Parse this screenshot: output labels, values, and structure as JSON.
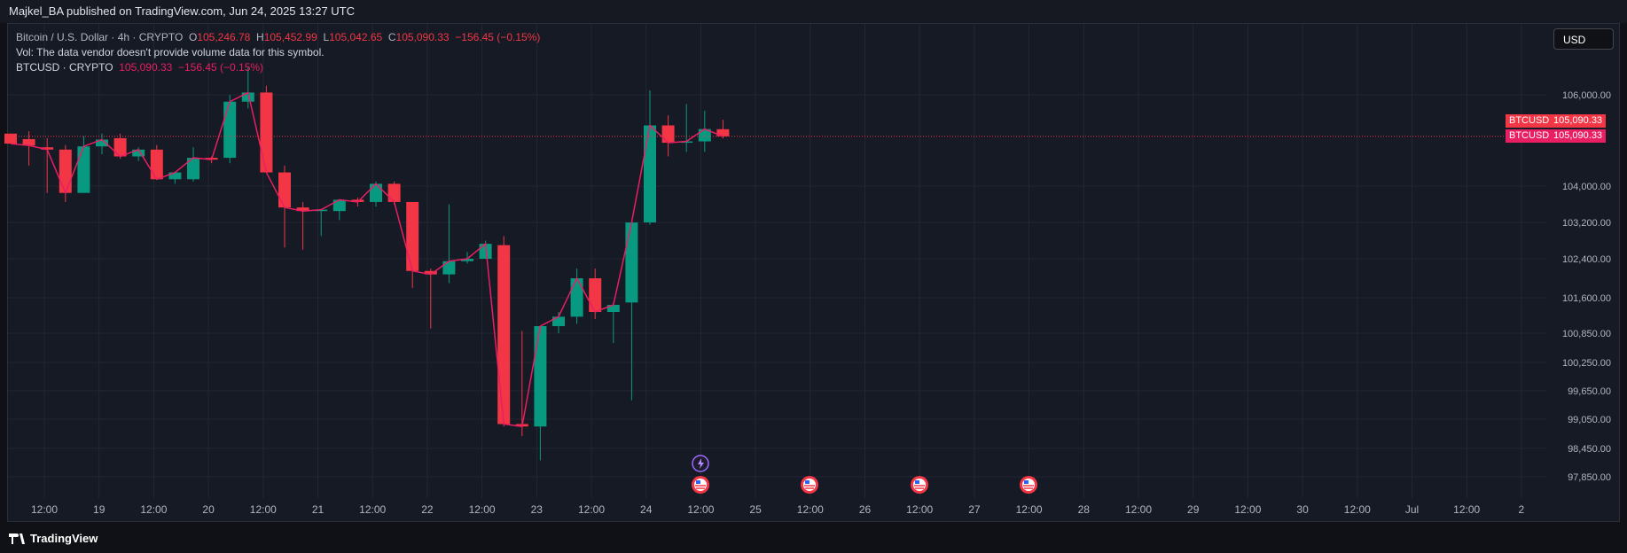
{
  "header": {
    "publisher_text": "Majkel_BA published on TradingView.com, Jun 24, 2025 13:27 UTC"
  },
  "legend": {
    "title": "Bitcoin / U.S. Dollar · 4h · CRYPTO",
    "o_label": "O",
    "o_value": "105,246.78",
    "h_label": "H",
    "h_value": "105,452.99",
    "l_label": "L",
    "l_value": "105,042.65",
    "c_label": "C",
    "c_value": "105,090.33",
    "change": "−156.45 (−0.15%)",
    "vol_text": "Vol: The data vendor doesn't provide volume data for this symbol.",
    "series_label": "BTCUSD · CRYPTO",
    "series_value": "105,090.33",
    "series_change": "−156.45 (−0.15%)"
  },
  "currency_button": {
    "label": "USD"
  },
  "price_tags": [
    {
      "symbol": "BTCUSD",
      "value": "105,090.33",
      "color": "#f23645"
    },
    {
      "symbol": "BTCUSD",
      "value": "105,090.33",
      "color": "#e91e63"
    }
  ],
  "footer": {
    "brand": "TradingView"
  },
  "colors": {
    "up": "#089981",
    "down": "#f23645",
    "line": "#e91e63",
    "grid": "#242733",
    "text": "#b2b5be"
  },
  "chart_data": {
    "type": "candlestick",
    "title": "Bitcoin / U.S. Dollar · 4h · CRYPTO",
    "ylim": [
      97600,
      107000
    ],
    "y_ticks": [
      {
        "value": 106000,
        "label": "106,000.00"
      },
      {
        "value": 104000,
        "label": "104,000.00"
      },
      {
        "value": 103200,
        "label": "103,200.00"
      },
      {
        "value": 102400,
        "label": "102,400.00"
      },
      {
        "value": 101600,
        "label": "101,600.00"
      },
      {
        "value": 100850,
        "label": "100,850.00"
      },
      {
        "value": 100250,
        "label": "100,250.00"
      },
      {
        "value": 99650,
        "label": "99,650.00"
      },
      {
        "value": 99050,
        "label": "99,050.00"
      },
      {
        "value": 98450,
        "label": "98,450.00"
      },
      {
        "value": 97850,
        "label": "97,850.00"
      }
    ],
    "x_ticks": [
      "12:00",
      "19",
      "12:00",
      "20",
      "12:00",
      "21",
      "12:00",
      "22",
      "12:00",
      "23",
      "12:00",
      "24",
      "12:00",
      "25",
      "12:00",
      "26",
      "12:00",
      "27",
      "12:00",
      "28",
      "12:00",
      "29",
      "12:00",
      "30",
      "12:00",
      "Jul",
      "12:00",
      "2"
    ],
    "event_markers": [
      "lightning",
      "us-flag",
      "us-flag",
      "us-flag",
      "us-flag"
    ],
    "candles": [
      {
        "o": 105150,
        "h": 105150,
        "l": 104950,
        "c": 104930
      },
      {
        "o": 105030,
        "h": 105200,
        "l": 104450,
        "c": 104890
      },
      {
        "o": 104850,
        "h": 105050,
        "l": 103850,
        "c": 104800
      },
      {
        "o": 104800,
        "h": 104900,
        "l": 103650,
        "c": 103850
      },
      {
        "o": 103850,
        "h": 105100,
        "l": 103850,
        "c": 104870
      },
      {
        "o": 104870,
        "h": 105150,
        "l": 104700,
        "c": 105020
      },
      {
        "o": 105050,
        "h": 105150,
        "l": 104600,
        "c": 104650
      },
      {
        "o": 104650,
        "h": 104850,
        "l": 104550,
        "c": 104800
      },
      {
        "o": 104800,
        "h": 104900,
        "l": 104150,
        "c": 104150
      },
      {
        "o": 104150,
        "h": 104300,
        "l": 104050,
        "c": 104300
      },
      {
        "o": 104150,
        "h": 104850,
        "l": 104100,
        "c": 104620
      },
      {
        "o": 104620,
        "h": 104650,
        "l": 104500,
        "c": 104580
      },
      {
        "o": 104620,
        "h": 106000,
        "l": 104500,
        "c": 105850
      },
      {
        "o": 105850,
        "h": 106600,
        "l": 105700,
        "c": 106050
      },
      {
        "o": 106050,
        "h": 106200,
        "l": 104300,
        "c": 104300
      },
      {
        "o": 104300,
        "h": 104450,
        "l": 102650,
        "c": 103530
      },
      {
        "o": 103530,
        "h": 103650,
        "l": 102600,
        "c": 103450
      },
      {
        "o": 103450,
        "h": 103500,
        "l": 102900,
        "c": 103480
      },
      {
        "o": 103450,
        "h": 103700,
        "l": 103250,
        "c": 103700
      },
      {
        "o": 103700,
        "h": 103750,
        "l": 103550,
        "c": 103650
      },
      {
        "o": 103650,
        "h": 104100,
        "l": 103550,
        "c": 104050
      },
      {
        "o": 104050,
        "h": 104100,
        "l": 103600,
        "c": 103650
      },
      {
        "o": 103650,
        "h": 103650,
        "l": 101800,
        "c": 102150
      },
      {
        "o": 102150,
        "h": 102200,
        "l": 100950,
        "c": 102080
      },
      {
        "o": 102080,
        "h": 103600,
        "l": 101900,
        "c": 102350
      },
      {
        "o": 102350,
        "h": 102550,
        "l": 102300,
        "c": 102400
      },
      {
        "o": 102400,
        "h": 102800,
        "l": 102400,
        "c": 102730
      },
      {
        "o": 102700,
        "h": 102900,
        "l": 98900,
        "c": 98950
      },
      {
        "o": 98950,
        "h": 100900,
        "l": 98700,
        "c": 98900
      },
      {
        "o": 98900,
        "h": 101000,
        "l": 98200,
        "c": 101000
      },
      {
        "o": 101000,
        "h": 101300,
        "l": 100850,
        "c": 101200
      },
      {
        "o": 101200,
        "h": 102200,
        "l": 101050,
        "c": 102000
      },
      {
        "o": 102000,
        "h": 102200,
        "l": 101150,
        "c": 101300
      },
      {
        "o": 101300,
        "h": 101500,
        "l": 100650,
        "c": 101450
      },
      {
        "o": 101500,
        "h": 103200,
        "l": 99450,
        "c": 103200
      },
      {
        "o": 103200,
        "h": 106100,
        "l": 103150,
        "c": 105330
      },
      {
        "o": 105330,
        "h": 105550,
        "l": 104650,
        "c": 104950
      },
      {
        "o": 104950,
        "h": 105800,
        "l": 104750,
        "c": 104980
      },
      {
        "o": 104980,
        "h": 105650,
        "l": 104750,
        "c": 105250
      },
      {
        "o": 105246.78,
        "h": 105452.99,
        "l": 105042.65,
        "c": 105090.33
      }
    ],
    "last_price": 105090.33
  }
}
